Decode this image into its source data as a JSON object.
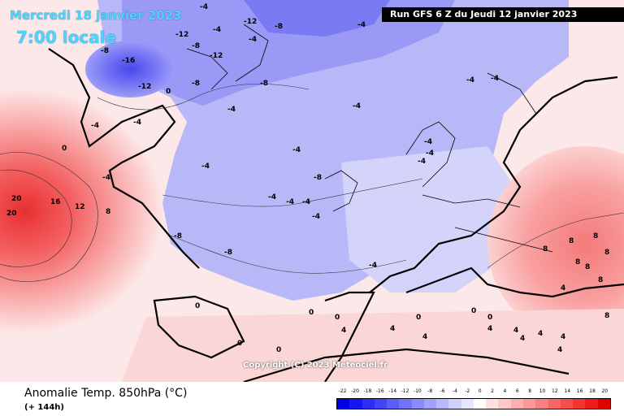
{
  "header": {
    "date": "Mercredi 18 janvier 2023",
    "time": "7:00 locale",
    "run": "Run GFS 6 Z du Jeudi 12 janvier 2023"
  },
  "map": {
    "copyright": "Copyright (C) 2023 Meteociel.fr",
    "labels": [
      "-4",
      "-12",
      "-12",
      "-8",
      "-12",
      "-8",
      "-16",
      "-12",
      "-4",
      "-8",
      "-4",
      "-8",
      "0",
      "-4",
      "-4",
      "-4",
      "-4",
      "-8",
      "-4",
      "-4",
      "-8",
      "-4",
      "-4",
      "-4",
      "-4",
      "-4",
      "-4",
      "-4",
      "-4",
      "20",
      "16",
      "12",
      "8",
      "0",
      "20",
      "0",
      "-8",
      "-8",
      "-4",
      "-4",
      "-4",
      "-4",
      "0",
      "0",
      "0",
      "0",
      "0",
      "0",
      "0",
      "4",
      "4",
      "4",
      "4",
      "4",
      "4",
      "4",
      "4",
      "4",
      "8",
      "8",
      "8",
      "8",
      "8",
      "8",
      "8",
      "8",
      "4"
    ]
  },
  "footer": {
    "title": "Anomalie Temp. 850hPa (°C)",
    "subtitle": "(+ 144h)"
  },
  "scale": {
    "labels": [
      "-22",
      "-20",
      "-18",
      "-16",
      "-14",
      "-12",
      "-10",
      "-8",
      "-6",
      "-4",
      "-2",
      "0",
      "2",
      "4",
      "6",
      "8",
      "10",
      "12",
      "14",
      "16",
      "18",
      "20"
    ],
    "colors": [
      "#0000e6",
      "#1616f0",
      "#2d2df5",
      "#4444f7",
      "#5c5cf8",
      "#7373f9",
      "#8a8afa",
      "#a2a2fb",
      "#b9b9fc",
      "#d0d0fd",
      "#e6e6fe",
      "#ffffff",
      "#fde0e0",
      "#fcc8c8",
      "#fbb0b0",
      "#fa9898",
      "#f98080",
      "#f86666",
      "#f64c4c",
      "#f43333",
      "#f01a1a",
      "#e00000"
    ]
  }
}
